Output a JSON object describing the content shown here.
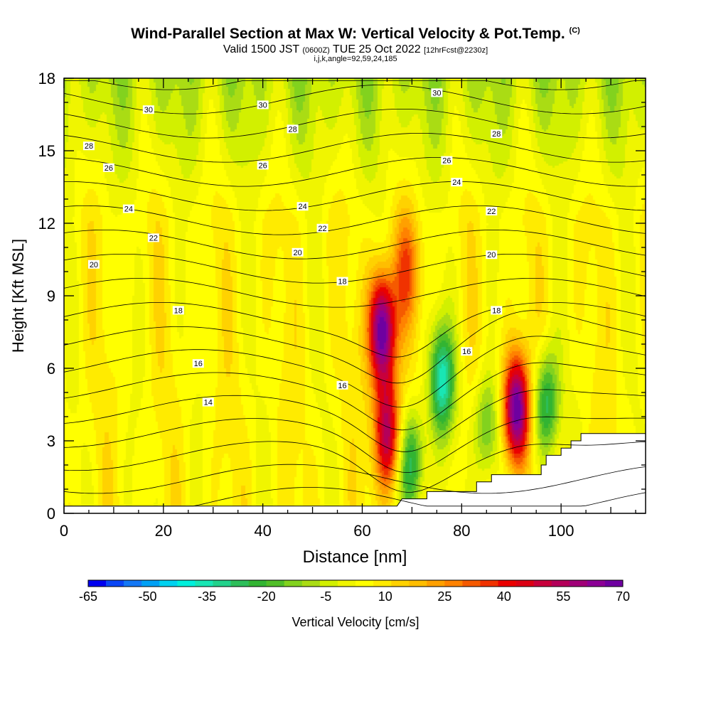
{
  "title": {
    "main": "Wind-Parallel Section at Max W: Vertical Velocity & Pot.Temp.",
    "copyright": "(C)"
  },
  "subtitle": {
    "valid": "Valid 1500 JST",
    "utc": "(0600Z)",
    "date": "TUE 25 Oct 2022",
    "forecast": "[12hrFcst@2230z]"
  },
  "params": "i,j,k,angle=92,59,24,185",
  "colors": {
    "background": "#ffffff",
    "terrain": "#ffffff",
    "contour": "#000000"
  },
  "chart_data": {
    "type": "heatmap",
    "xlabel": "Distance [nm]",
    "ylabel": "Height [Kft MSL]",
    "xlim": [
      0,
      117
    ],
    "ylim": [
      0,
      18
    ],
    "x_ticks": [
      "0",
      "20",
      "40",
      "60",
      "80",
      "100"
    ],
    "y_ticks": [
      "0",
      "3",
      "6",
      "9",
      "12",
      "15",
      "18"
    ],
    "colorbar": {
      "label": "Vertical Velocity [cm/s]",
      "tick_labels": [
        "-65",
        "-50",
        "-35",
        "-20",
        "-5",
        "10",
        "25",
        "40",
        "55",
        "70"
      ],
      "min": -65,
      "max": 70,
      "colors": [
        "#0000f0",
        "#0a46f5",
        "#1478f5",
        "#00a0f5",
        "#00d2f0",
        "#00f0dc",
        "#19e6b4",
        "#23d28c",
        "#2dbe5a",
        "#32b432",
        "#50be28",
        "#82d21e",
        "#aadc14",
        "#d2f000",
        "#f0f500",
        "#ffff00",
        "#ffeb00",
        "#ffd200",
        "#ffbe00",
        "#ffa000",
        "#ff8200",
        "#f55a00",
        "#f03200",
        "#eb0000",
        "#dc0014",
        "#c8003c",
        "#b4005a",
        "#a00078",
        "#8c0096",
        "#6e00a0"
      ]
    },
    "vertical_velocity_features": [
      {
        "x": 64,
        "y": 7.6,
        "w": 70,
        "kind": "updraft"
      },
      {
        "x": 65,
        "y": 3.3,
        "w": 50,
        "kind": "updraft"
      },
      {
        "x": 69,
        "y": 10.0,
        "w": 25,
        "kind": "updraft"
      },
      {
        "x": 91,
        "y": 4.3,
        "w": 68,
        "kind": "updraft"
      },
      {
        "x": 76,
        "y": 5.5,
        "w": -40,
        "kind": "downdraft"
      },
      {
        "x": 70,
        "y": 2.0,
        "w": -35,
        "kind": "downdraft"
      },
      {
        "x": 97,
        "y": 4.5,
        "w": -35,
        "kind": "downdraft"
      },
      {
        "x": 85,
        "y": 3.5,
        "w": -25,
        "kind": "downdraft"
      }
    ],
    "theta_contour_labels": [
      {
        "text": "14",
        "x": 29,
        "y": 4.6
      },
      {
        "text": "16",
        "x": 27,
        "y": 6.2
      },
      {
        "text": "16",
        "x": 56,
        "y": 5.3
      },
      {
        "text": "16",
        "x": 81,
        "y": 6.7
      },
      {
        "text": "18",
        "x": 23,
        "y": 8.4
      },
      {
        "text": "18",
        "x": 56,
        "y": 9.6
      },
      {
        "text": "18",
        "x": 87,
        "y": 8.4
      },
      {
        "text": "20",
        "x": 6,
        "y": 10.3
      },
      {
        "text": "20",
        "x": 47,
        "y": 10.8
      },
      {
        "text": "20",
        "x": 86,
        "y": 10.7
      },
      {
        "text": "22",
        "x": 18,
        "y": 11.4
      },
      {
        "text": "22",
        "x": 52,
        "y": 11.8
      },
      {
        "text": "22",
        "x": 86,
        "y": 12.5
      },
      {
        "text": "24",
        "x": 13,
        "y": 12.6
      },
      {
        "text": "24",
        "x": 48,
        "y": 12.7
      },
      {
        "text": "24",
        "x": 79,
        "y": 13.7
      },
      {
        "text": "26",
        "x": 9,
        "y": 14.3
      },
      {
        "text": "26",
        "x": 40,
        "y": 14.4
      },
      {
        "text": "26",
        "x": 77,
        "y": 14.6
      },
      {
        "text": "28",
        "x": 5,
        "y": 15.2
      },
      {
        "text": "28",
        "x": 46,
        "y": 15.9
      },
      {
        "text": "28",
        "x": 87,
        "y": 15.7
      },
      {
        "text": "30",
        "x": 17,
        "y": 16.7
      },
      {
        "text": "30",
        "x": 40,
        "y": 16.9
      },
      {
        "text": "30",
        "x": 75,
        "y": 17.4
      }
    ],
    "terrain_profile": [
      [
        0,
        0.3
      ],
      [
        67,
        0.3
      ],
      [
        68,
        0.6
      ],
      [
        73,
        0.6
      ],
      [
        73,
        0.9
      ],
      [
        83,
        0.9
      ],
      [
        83,
        1.3
      ],
      [
        86,
        1.3
      ],
      [
        86,
        1.6
      ],
      [
        96,
        1.6
      ],
      [
        96,
        2.0
      ],
      [
        97,
        2.0
      ],
      [
        97,
        2.4
      ],
      [
        100,
        2.4
      ],
      [
        100,
        2.7
      ],
      [
        102,
        2.7
      ],
      [
        102,
        3.0
      ],
      [
        104,
        3.0
      ],
      [
        104,
        3.3
      ],
      [
        117,
        3.3
      ]
    ]
  }
}
